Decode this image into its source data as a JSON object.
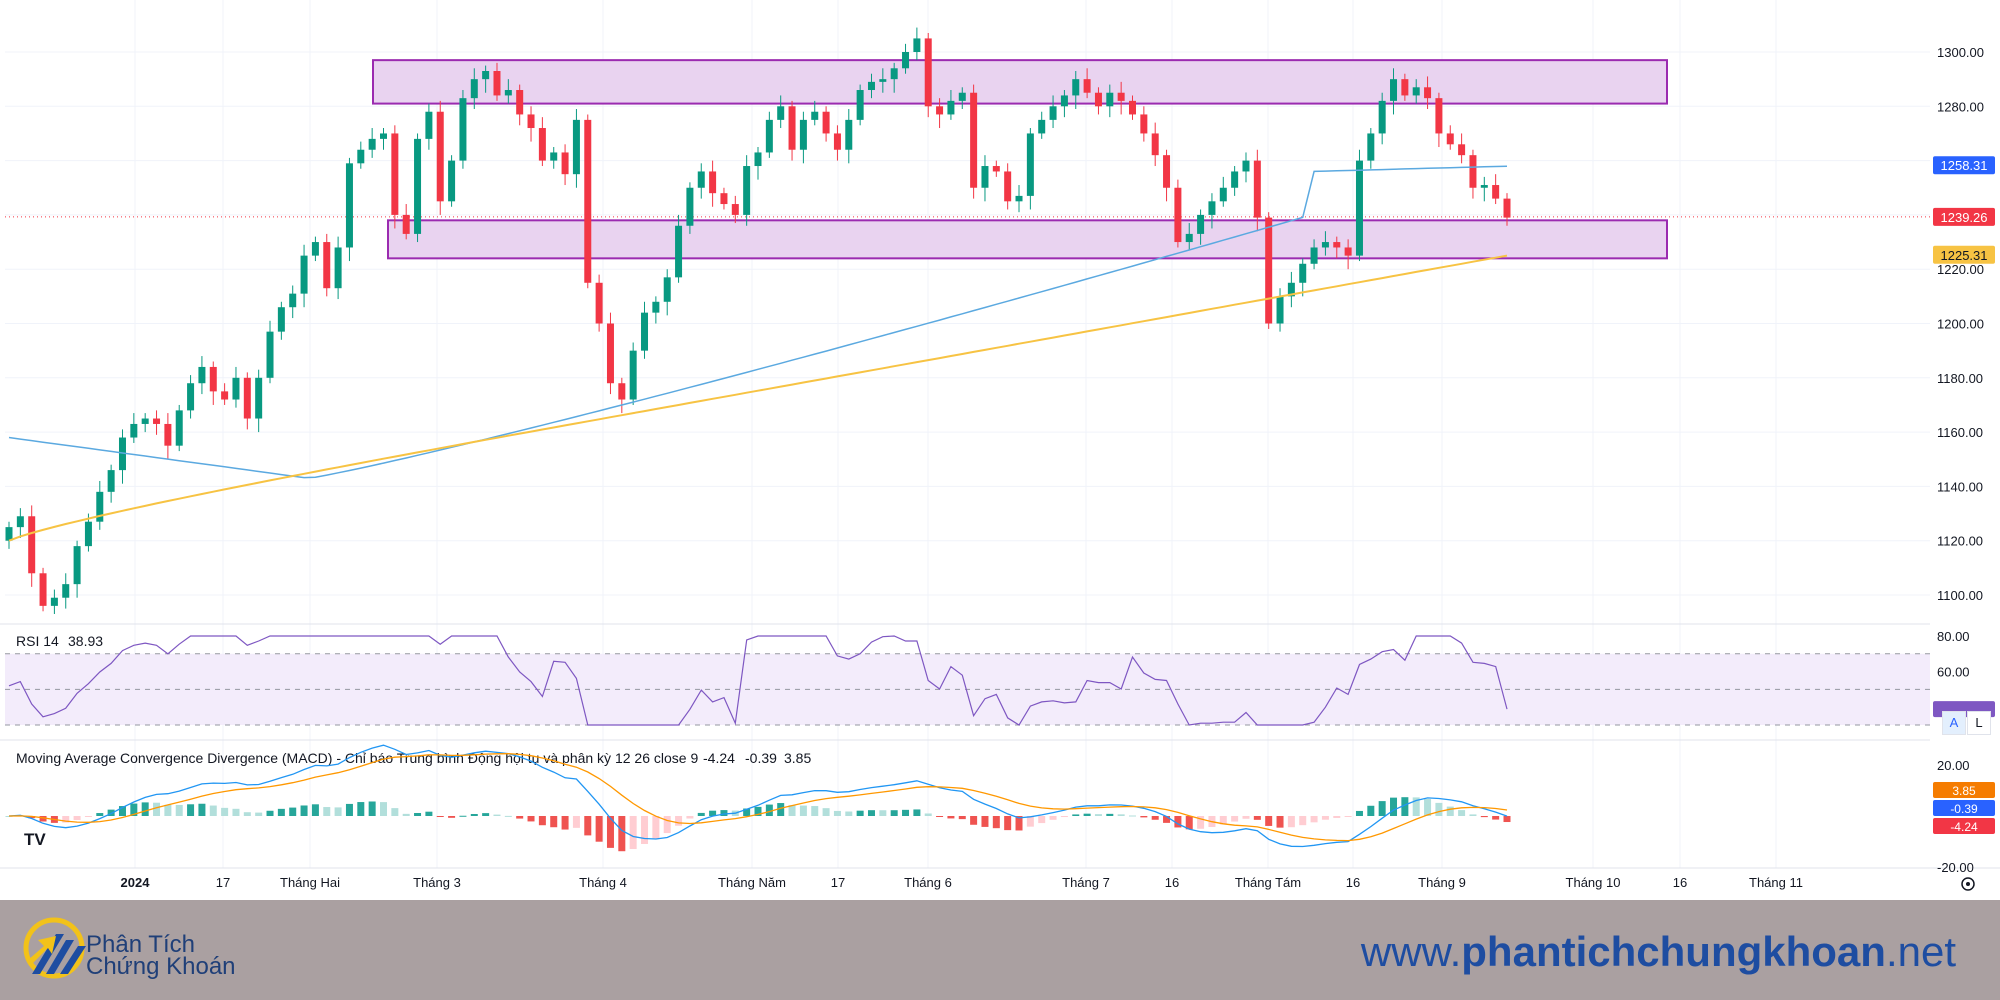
{
  "chart_data": [
    {
      "type": "candlestick",
      "panel": "price",
      "y_axis_ticks": [
        "1300.00",
        "1280.00",
        "1260.00",
        "1240.00",
        "1220.00",
        "1200.00",
        "1180.00",
        "1160.00",
        "1140.00",
        "1120.00",
        "1100.00"
      ],
      "ylim": [
        1095,
        1310
      ],
      "x_labels": [
        "2024",
        "17",
        "Tháng Hai",
        "Tháng 3",
        "Tháng 4",
        "Tháng Năm",
        "17",
        "Tháng 6",
        "Tháng 7",
        "16",
        "Tháng Tám",
        "16",
        "Tháng 9",
        "Tháng 10",
        "16",
        "Tháng 11"
      ],
      "resistance_zone": [
        1281,
        1297
      ],
      "support_zone": [
        1224,
        1238
      ],
      "price_labels": {
        "last": "1239.26",
        "ma_blue": "1258.31",
        "ma_yellow": "1225.31"
      },
      "colors": {
        "up": "#089981",
        "down": "#f23645",
        "ma_blue": "#5ba9e0",
        "ma_yellow": "#f7c343",
        "zone_fill": "#e9d3f0",
        "zone_border": "#9b2bb0"
      },
      "series": [
        {
          "name": "close",
          "values": [
            1125,
            1129,
            1108,
            1096,
            1099,
            1104,
            1118,
            1127,
            1138,
            1146,
            1158,
            1163,
            1165,
            1163,
            1155,
            1168,
            1178,
            1184,
            1175,
            1172,
            1180,
            1165,
            1180,
            1197,
            1206,
            1211,
            1225,
            1230,
            1213,
            1228,
            1259,
            1264,
            1268,
            1270,
            1240,
            1233,
            1268,
            1278,
            1245,
            1260,
            1283,
            1290,
            1293,
            1284,
            1286,
            1277,
            1272,
            1260,
            1263,
            1255,
            1275,
            1215,
            1200,
            1178,
            1172,
            1190,
            1204,
            1208,
            1217,
            1236,
            1250,
            1256,
            1248,
            1244,
            1240,
            1258,
            1263,
            1275,
            1280,
            1264,
            1275,
            1278,
            1270,
            1264,
            1275,
            1286,
            1289,
            1290,
            1294,
            1300,
            1305,
            1280,
            1277,
            1282,
            1285,
            1250,
            1258,
            1256,
            1245,
            1247,
            1270,
            1275,
            1280,
            1284,
            1290,
            1285,
            1280,
            1285,
            1282,
            1277,
            1270,
            1262,
            1250,
            1230,
            1233,
            1240,
            1245,
            1250,
            1256,
            1260,
            1239,
            1200,
            1210,
            1215,
            1222,
            1228,
            1230,
            1228,
            1225,
            1260,
            1270,
            1282,
            1290,
            1284,
            1287,
            1283,
            1270,
            1266,
            1262,
            1250,
            1251,
            1246,
            1239
          ]
        }
      ]
    },
    {
      "type": "line",
      "panel": "rsi",
      "title": "RSI 14",
      "value": "38.93",
      "y_axis_ticks": [
        "80.00",
        "60.00"
      ],
      "ylim": [
        28,
        82
      ]
    },
    {
      "type": "bar",
      "panel": "macd",
      "title": "Moving Average Convergence Divergence (MACD) - Chỉ báo Trung bình Động hội tụ và phân kỳ 12 26 close 9",
      "values": {
        "histogram": "-4.24",
        "macd": "-0.39",
        "signal": "3.85"
      },
      "labels": {
        "signal": "3.85",
        "macd": "-0.39",
        "histogram": "-4.24"
      },
      "y_axis_ticks": [
        "20.00",
        "-20.00"
      ],
      "ylim": [
        -22,
        22
      ]
    }
  ],
  "buttons": {
    "a": "A",
    "l": "L"
  },
  "footer": {
    "logo_line1": "Phân Tích",
    "logo_line2": "Chứng Khoán",
    "site_prefix": "www.",
    "site_bold": "phantichchungkhoan",
    "site_suffix": ".net"
  }
}
